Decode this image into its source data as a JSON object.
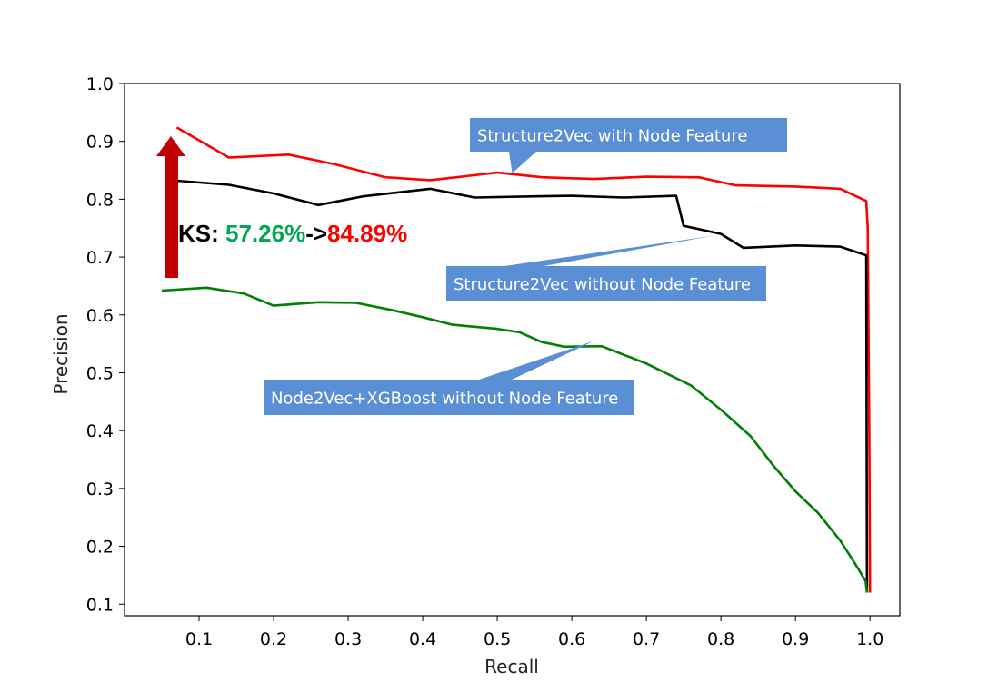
{
  "chart_data": {
    "type": "line",
    "title": "",
    "xlabel": "Recall",
    "ylabel": "Precision",
    "xlim": [
      0.0,
      1.04
    ],
    "ylim": [
      0.08,
      1.0
    ],
    "xticks": [
      "0.1",
      "0.2",
      "0.3",
      "0.4",
      "0.5",
      "0.6",
      "0.7",
      "0.8",
      "0.9",
      "1.0"
    ],
    "xtick_values": [
      0.1,
      0.2,
      0.3,
      0.4,
      0.5,
      0.6,
      0.7,
      0.8,
      0.9,
      1.0
    ],
    "yticks": [
      "0.1",
      "0.2",
      "0.3",
      "0.4",
      "0.5",
      "0.6",
      "0.7",
      "0.8",
      "0.9",
      "1.0"
    ],
    "ytick_values": [
      0.1,
      0.2,
      0.3,
      0.4,
      0.5,
      0.6,
      0.7,
      0.8,
      0.9,
      1.0
    ],
    "grid": false,
    "series": [
      {
        "color": "#ff0000",
        "points": [
          [
            0.07,
            0.924
          ],
          [
            0.14,
            0.872
          ],
          [
            0.22,
            0.877
          ],
          [
            0.28,
            0.861
          ],
          [
            0.35,
            0.838
          ],
          [
            0.41,
            0.833
          ],
          [
            0.5,
            0.846
          ],
          [
            0.56,
            0.838
          ],
          [
            0.63,
            0.835
          ],
          [
            0.7,
            0.839
          ],
          [
            0.77,
            0.838
          ],
          [
            0.82,
            0.824
          ],
          [
            0.9,
            0.822
          ],
          [
            0.96,
            0.818
          ],
          [
            0.995,
            0.797
          ],
          [
            0.997,
            0.75
          ],
          [
            0.999,
            0.4
          ],
          [
            1.0,
            0.12
          ]
        ]
      },
      {
        "color": "#000000",
        "points": [
          [
            0.07,
            0.832
          ],
          [
            0.14,
            0.825
          ],
          [
            0.2,
            0.81
          ],
          [
            0.26,
            0.79
          ],
          [
            0.32,
            0.805
          ],
          [
            0.41,
            0.818
          ],
          [
            0.47,
            0.803
          ],
          [
            0.55,
            0.805
          ],
          [
            0.6,
            0.806
          ],
          [
            0.67,
            0.803
          ],
          [
            0.74,
            0.806
          ],
          [
            0.75,
            0.754
          ],
          [
            0.8,
            0.74
          ],
          [
            0.83,
            0.716
          ],
          [
            0.9,
            0.72
          ],
          [
            0.96,
            0.718
          ],
          [
            0.995,
            0.703
          ],
          [
            0.996,
            0.12
          ]
        ]
      },
      {
        "color": "#007f00",
        "points": [
          [
            0.05,
            0.642
          ],
          [
            0.11,
            0.647
          ],
          [
            0.16,
            0.637
          ],
          [
            0.2,
            0.616
          ],
          [
            0.26,
            0.622
          ],
          [
            0.31,
            0.621
          ],
          [
            0.36,
            0.608
          ],
          [
            0.4,
            0.596
          ],
          [
            0.44,
            0.583
          ],
          [
            0.5,
            0.576
          ],
          [
            0.53,
            0.57
          ],
          [
            0.56,
            0.553
          ],
          [
            0.59,
            0.545
          ],
          [
            0.64,
            0.546
          ],
          [
            0.7,
            0.516
          ],
          [
            0.76,
            0.478
          ],
          [
            0.8,
            0.436
          ],
          [
            0.84,
            0.39
          ],
          [
            0.87,
            0.34
          ],
          [
            0.9,
            0.295
          ],
          [
            0.93,
            0.258
          ],
          [
            0.96,
            0.21
          ],
          [
            0.98,
            0.17
          ],
          [
            0.994,
            0.14
          ],
          [
            0.996,
            0.12
          ]
        ]
      }
    ],
    "annotations": [
      {
        "text": "Structure2Vec with Node Feature",
        "target": [
          0.52,
          0.845
        ]
      },
      {
        "text": "Structure2Vec without Node Feature",
        "target": [
          0.79,
          0.737
        ]
      },
      {
        "text": "Node2Vec+XGBoost without Node Feature",
        "target": [
          0.63,
          0.555
        ]
      }
    ],
    "ks": {
      "prefix": "KS: ",
      "before": "57.26%",
      "arrow": "->",
      "after": "84.89%",
      "before_color": "#00a651",
      "after_color": "#ff0000",
      "prefix_color": "#000000"
    },
    "arrow_color": "#c00000",
    "callout_color": "#5b8fd5"
  }
}
